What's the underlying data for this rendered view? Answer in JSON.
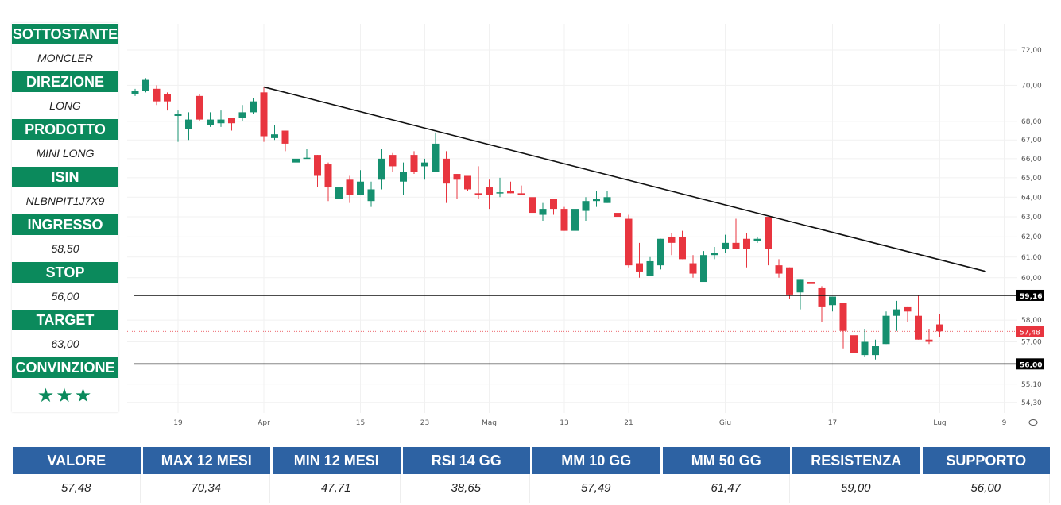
{
  "panel": [
    {
      "label": "SOTTOSTANTE",
      "value": "MONCLER"
    },
    {
      "label": "DIREZIONE",
      "value": "LONG"
    },
    {
      "label": "PRODOTTO",
      "value": "MINI LONG"
    },
    {
      "label": "ISIN",
      "value": "NLBNPIT1J7X9"
    },
    {
      "label": "INGRESSO",
      "value": "58,50"
    },
    {
      "label": "STOP",
      "value": "56,00"
    },
    {
      "label": "TARGET",
      "value": "63,00"
    },
    {
      "label": "CONVINZIONE",
      "value": "★★★"
    }
  ],
  "table": {
    "headers": [
      "VALORE",
      "MAX 12 MESI",
      "MIN 12 MESI",
      "RSI 14 GG",
      "MM 10 GG",
      "MM 50 GG",
      "RESISTENZA",
      "SUPPORTO"
    ],
    "values": [
      "57,48",
      "70,34",
      "47,71",
      "38,65",
      "57,49",
      "61,47",
      "59,00",
      "56,00"
    ]
  },
  "chart_data": {
    "type": "candlestick",
    "colors": {
      "up": "#15906f",
      "down": "#e8353f",
      "line": "#111111"
    },
    "y_ticks": [
      72,
      70,
      68,
      67,
      66,
      65,
      64,
      63,
      62,
      61,
      60,
      58,
      57,
      55.1,
      54.3
    ],
    "y_tick_labels": [
      "72,00",
      "70,00",
      "68,00",
      "67,00",
      "66,00",
      "65,00",
      "64,00",
      "63,00",
      "62,00",
      "61,00",
      "60,00",
      "58,00",
      "57,00",
      "55,10",
      "54,30"
    ],
    "x_ticks": [
      {
        "index": 4,
        "label": "19"
      },
      {
        "index": 12,
        "label": "Apr"
      },
      {
        "index": 21,
        "label": "15"
      },
      {
        "index": 27,
        "label": "23"
      },
      {
        "index": 33,
        "label": "Mag"
      },
      {
        "index": 40,
        "label": "13"
      },
      {
        "index": 46,
        "label": "21"
      },
      {
        "index": 55,
        "label": "Giu"
      },
      {
        "index": 65,
        "label": "17"
      },
      {
        "index": 75,
        "label": "Lug"
      },
      {
        "index": 81,
        "label": "9"
      }
    ],
    "horizontal_lines": [
      {
        "value": 59.16,
        "label": "59,16"
      },
      {
        "value": 56.0,
        "label": "56,00"
      }
    ],
    "last_price": {
      "value": 57.48,
      "label": "57,48"
    },
    "trendline": {
      "from": {
        "index": 12,
        "value": 69.9
      },
      "to": {
        "index": 79.3,
        "value": 60.3
      }
    },
    "ohlc": [
      [
        69.5,
        69.8,
        69.4,
        69.7
      ],
      [
        69.7,
        70.4,
        69.6,
        70.3
      ],
      [
        69.8,
        70.0,
        68.9,
        69.1
      ],
      [
        69.5,
        69.6,
        68.6,
        69.1
      ],
      [
        68.3,
        68.6,
        66.9,
        68.4
      ],
      [
        67.6,
        68.5,
        67.0,
        68.1
      ],
      [
        69.4,
        69.5,
        68.0,
        68.1
      ],
      [
        67.8,
        68.5,
        67.7,
        68.1
      ],
      [
        67.9,
        68.6,
        67.7,
        68.1
      ],
      [
        68.2,
        68.2,
        67.5,
        67.9
      ],
      [
        68.2,
        68.9,
        68.0,
        68.5
      ],
      [
        68.5,
        69.3,
        68.4,
        69.1
      ],
      [
        69.6,
        69.9,
        66.9,
        67.2
      ],
      [
        67.1,
        67.8,
        67.0,
        67.3
      ],
      [
        67.5,
        67.5,
        66.4,
        66.8
      ],
      [
        65.8,
        66.0,
        65.1,
        66.0
      ],
      [
        66.0,
        66.5,
        66.0,
        66.05
      ],
      [
        66.2,
        66.2,
        64.5,
        65.1
      ],
      [
        65.7,
        65.8,
        63.8,
        64.5
      ],
      [
        63.9,
        64.9,
        63.9,
        64.5
      ],
      [
        64.9,
        65.1,
        63.7,
        64.1
      ],
      [
        64.1,
        65.4,
        64.1,
        64.8
      ],
      [
        63.8,
        64.8,
        63.5,
        64.4
      ],
      [
        64.9,
        66.5,
        64.4,
        66.0
      ],
      [
        66.2,
        66.3,
        65.3,
        65.6
      ],
      [
        64.8,
        65.8,
        64.1,
        65.3
      ],
      [
        66.2,
        66.4,
        65.2,
        65.3
      ],
      [
        65.6,
        66.0,
        64.9,
        65.8
      ],
      [
        65.3,
        67.4,
        65.3,
        66.8
      ],
      [
        66.0,
        66.4,
        63.7,
        64.7
      ],
      [
        65.2,
        65.2,
        63.9,
        64.9
      ],
      [
        65.1,
        65.1,
        64.3,
        64.4
      ],
      [
        64.2,
        65.6,
        63.9,
        64.1
      ],
      [
        64.5,
        64.9,
        63.4,
        64.1
      ],
      [
        64.2,
        65.0,
        64.0,
        64.25
      ],
      [
        64.3,
        64.8,
        64.2,
        64.2
      ],
      [
        64.2,
        64.6,
        64.1,
        64.1
      ],
      [
        64.0,
        64.2,
        62.9,
        63.2
      ],
      [
        63.1,
        63.7,
        62.8,
        63.4
      ],
      [
        63.9,
        63.9,
        63.1,
        63.4
      ],
      [
        63.4,
        63.5,
        62.3,
        62.3
      ],
      [
        62.3,
        63.4,
        61.7,
        63.4
      ],
      [
        63.3,
        64.0,
        62.8,
        63.8
      ],
      [
        63.8,
        64.3,
        63.5,
        63.9
      ],
      [
        63.7,
        64.3,
        63.7,
        64.0
      ],
      [
        63.2,
        63.7,
        62.9,
        63.0
      ],
      [
        62.9,
        63.1,
        60.5,
        60.6
      ],
      [
        60.7,
        61.7,
        60.0,
        60.3
      ],
      [
        60.1,
        61.0,
        60.1,
        60.8
      ],
      [
        60.6,
        61.9,
        60.4,
        61.9
      ],
      [
        62.0,
        62.2,
        61.1,
        61.7
      ],
      [
        62.0,
        62.3,
        60.9,
        60.9
      ],
      [
        60.7,
        61.1,
        60.0,
        60.2
      ],
      [
        59.8,
        61.3,
        59.8,
        61.1
      ],
      [
        61.1,
        61.5,
        60.9,
        61.2
      ],
      [
        61.4,
        62.1,
        61.2,
        61.7
      ],
      [
        61.7,
        62.9,
        61.4,
        61.4
      ],
      [
        61.9,
        62.2,
        60.5,
        61.4
      ],
      [
        61.8,
        62.0,
        61.7,
        61.9
      ],
      [
        63.0,
        63.0,
        60.6,
        61.4
      ],
      [
        60.6,
        60.9,
        60.0,
        60.2
      ],
      [
        60.5,
        60.5,
        59.0,
        59.2
      ],
      [
        59.3,
        59.9,
        58.5,
        59.9
      ],
      [
        59.8,
        60.0,
        58.9,
        59.7
      ],
      [
        59.5,
        59.6,
        57.9,
        58.6
      ],
      [
        58.7,
        59.1,
        58.4,
        59.1
      ],
      [
        58.8,
        58.8,
        56.7,
        57.5
      ],
      [
        57.3,
        57.9,
        56.0,
        56.5
      ],
      [
        56.4,
        57.6,
        56.3,
        57.0
      ],
      [
        56.4,
        57.1,
        56.2,
        56.8
      ],
      [
        56.9,
        58.4,
        56.9,
        58.2
      ],
      [
        58.2,
        58.9,
        57.5,
        58.5
      ],
      [
        58.6,
        58.6,
        57.9,
        58.4
      ],
      [
        58.2,
        59.16,
        57.1,
        57.1
      ],
      [
        57.1,
        57.6,
        56.9,
        57.0
      ],
      [
        57.8,
        58.3,
        57.2,
        57.48
      ]
    ]
  }
}
